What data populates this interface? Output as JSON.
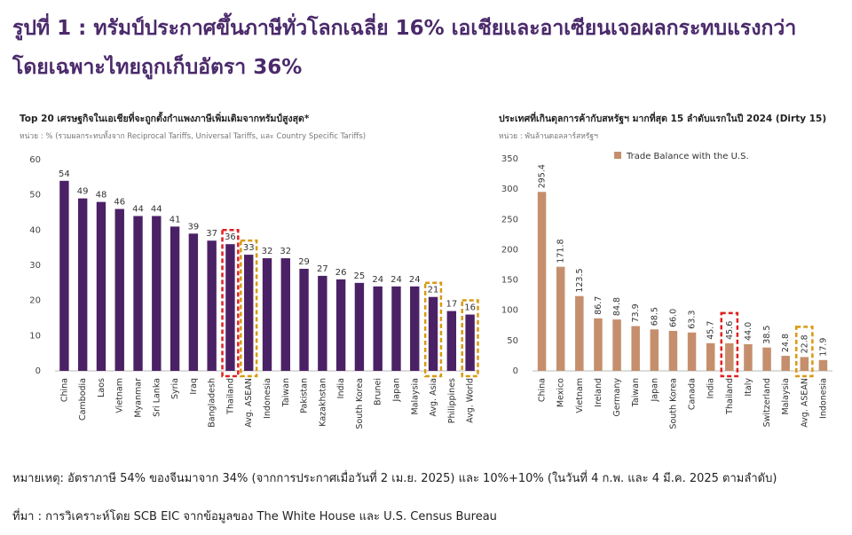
{
  "headline": {
    "line1": "รูปที่ 1 : ทรัมป์ประกาศขึ้นภาษีทั่วโลกเฉลี่ย 16% เอเชียและอาเซียนเจอผลกระทบแรงกว่า",
    "line2": "โดยเฉพาะไทยถูกเก็บอัตรา 36%"
  },
  "colors": {
    "left_bar": "#4b2166",
    "right_bar": "#c58f6d",
    "red_highlight": "#e02020",
    "gold_highlight": "#d89a12"
  },
  "chart_data": [
    {
      "type": "bar",
      "title": "Top 20 เศรษฐกิจในเอเชียที่จะถูกตั้งกำแพงภาษีเพิ่มเติมจากทรัมป์สูงสุด*",
      "subtitle": "หน่วย : % (รวมผลกระทบทั้งจาก Reciprocal Tariffs, Universal Tariffs, และ Country Specific Tariffs)",
      "categories": [
        "China",
        "Cambodia",
        "Laos",
        "Vietnam",
        "Myanmar",
        "Sri Lanka",
        "Syria",
        "Iraq",
        "Bangladesh",
        "Thailand",
        "Avg. ASEAN",
        "Indonesia",
        "Taiwan",
        "Pakistan",
        "Kazakhstan",
        "India",
        "South Korea",
        "Brunei",
        "Japan",
        "Malaysia",
        "Avg. Asia",
        "Philippines",
        "Avg. World"
      ],
      "values": [
        54,
        49,
        48,
        46,
        44,
        44,
        41,
        39,
        37,
        36,
        33,
        32,
        32,
        29,
        27,
        26,
        25,
        24,
        24,
        24,
        21,
        17,
        16
      ],
      "ylim": [
        0,
        60
      ],
      "yticks": [
        0,
        10,
        20,
        30,
        40,
        50,
        60
      ],
      "highlight_red": [
        "Thailand"
      ],
      "highlight_gold": [
        "Avg. ASEAN",
        "Avg. Asia",
        "Avg. World"
      ],
      "grid": false
    },
    {
      "type": "bar",
      "title": "ประเทศที่เกินดุลการค้ากับสหรัฐฯ มากที่สุด 15 ลำดับแรกในปี 2024 (Dirty 15)",
      "subtitle": "หน่วย : พันล้านดอลลาร์สหรัฐฯ",
      "legend": "Trade Balance with the U.S.",
      "legend_position": "top-right",
      "categories": [
        "China",
        "Mexico",
        "Vietnam",
        "Ireland",
        "Germany",
        "Taiwan",
        "Japan",
        "South Korea",
        "Canada",
        "India",
        "Thailand",
        "Italy",
        "Switzerland",
        "Malaysia",
        "Avg. ASEAN",
        "Indonesia"
      ],
      "values": [
        295.4,
        171.8,
        123.5,
        86.7,
        84.8,
        73.9,
        68.5,
        66.0,
        63.3,
        45.7,
        45.6,
        44.0,
        38.5,
        24.8,
        22.8,
        17.9
      ],
      "labels": [
        "295.4",
        "171.8",
        "123.5",
        "86.7",
        "84.8",
        "73.9",
        "68.5",
        "66.0",
        "63.3",
        "45.7",
        "45.6",
        "44.0",
        "38.5",
        "24.8",
        "22.8",
        "17.9"
      ],
      "ylim": [
        0,
        350
      ],
      "yticks": [
        0,
        50,
        100,
        150,
        200,
        250,
        300,
        350
      ],
      "highlight_red": [
        "Thailand"
      ],
      "highlight_gold": [
        "Avg. ASEAN"
      ],
      "grid": false
    }
  ],
  "footnotes": {
    "remark": "หมายเหตุ: อัตราภาษี 54% ของจีนมาจาก 34% (จากการประกาศเมื่อวันที่ 2 เม.ย. 2025) และ 10%+10% (ในวันที่ 4 ก.พ. และ 4 มี.ค. 2025 ตามลำดับ)",
    "source": "ที่มา : การวิเคราะห์โดย SCB EIC จากข้อมูลของ The White House และ U.S. Census Bureau"
  }
}
